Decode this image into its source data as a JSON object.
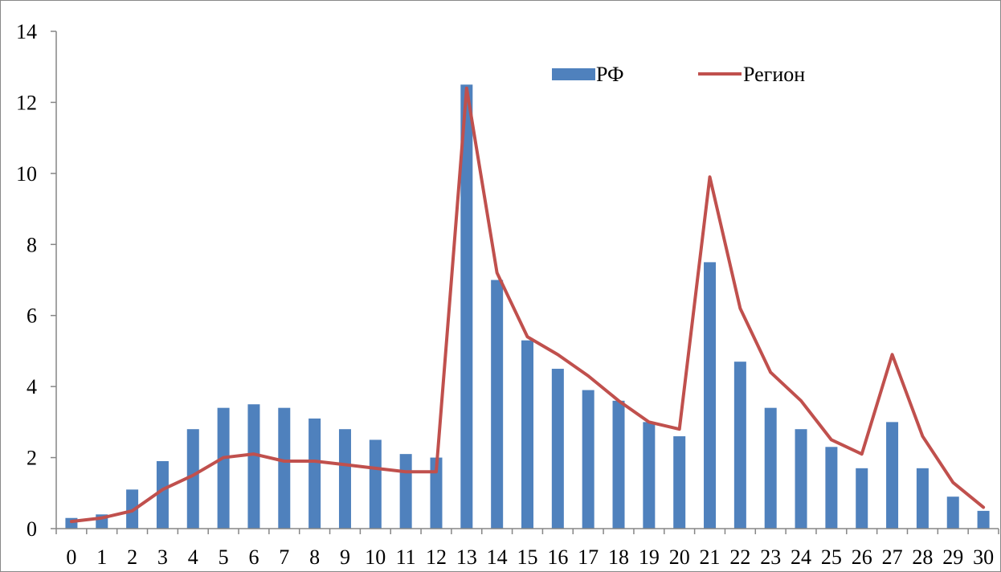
{
  "chart_data": {
    "type": "bar",
    "title": "",
    "xlabel": "",
    "ylabel": "",
    "categories": [
      "0",
      "1",
      "2",
      "3",
      "4",
      "5",
      "6",
      "7",
      "8",
      "9",
      "10",
      "11",
      "12",
      "13",
      "14",
      "15",
      "16",
      "17",
      "18",
      "19",
      "20",
      "21",
      "22",
      "23",
      "24",
      "25",
      "26",
      "27",
      "28",
      "29",
      "30"
    ],
    "ylim": [
      0,
      14
    ],
    "yticks": [
      "0",
      "2",
      "4",
      "6",
      "8",
      "10",
      "12",
      "14"
    ],
    "grid": false,
    "legend": "top-right",
    "series": [
      {
        "name": "РФ",
        "kind": "bar",
        "color": "#4F81BD",
        "values": [
          0.3,
          0.4,
          1.1,
          1.9,
          2.8,
          3.4,
          3.5,
          3.4,
          3.1,
          2.8,
          2.5,
          2.1,
          2.0,
          12.5,
          7.0,
          5.3,
          4.5,
          3.9,
          3.6,
          3.0,
          2.6,
          7.5,
          4.7,
          3.4,
          2.8,
          2.3,
          1.7,
          3.0,
          1.7,
          0.9,
          0.5
        ]
      },
      {
        "name": "Регион",
        "kind": "line",
        "color": "#C0504D",
        "values": [
          0.2,
          0.3,
          0.5,
          1.1,
          1.5,
          2.0,
          2.1,
          1.9,
          1.9,
          1.8,
          1.7,
          1.6,
          1.6,
          12.4,
          7.2,
          5.4,
          4.9,
          4.3,
          3.6,
          3.0,
          2.8,
          9.9,
          6.2,
          4.4,
          3.6,
          2.5,
          2.1,
          4.9,
          2.6,
          1.3,
          0.6
        ]
      }
    ]
  }
}
